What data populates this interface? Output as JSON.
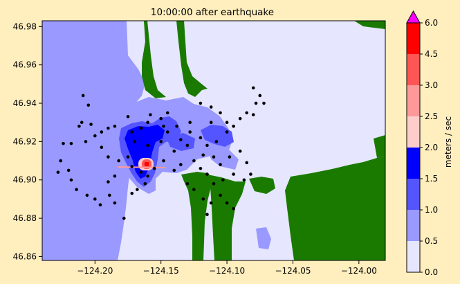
{
  "chart_data": {
    "type": "heatmap",
    "title": "10:00:00 after earthquake",
    "xlabel": "",
    "ylabel": "",
    "xlim": [
      -124.24,
      -123.98
    ],
    "ylim": [
      46.858,
      46.983
    ],
    "x_ticks": [
      -124.2,
      -124.15,
      -124.1,
      -124.05,
      -124.0
    ],
    "x_tick_labels": [
      "−124.20",
      "−124.15",
      "−124.10",
      "−124.05",
      "−124.00"
    ],
    "y_ticks": [
      46.86,
      46.88,
      46.9,
      46.92,
      46.94,
      46.96,
      46.98
    ],
    "y_tick_labels": [
      "46.86",
      "46.88",
      "46.90",
      "46.92",
      "46.94",
      "46.96",
      "46.98"
    ],
    "colorbar": {
      "label": "meters / sec",
      "levels": [
        0.0,
        0.5,
        1.0,
        1.5,
        2.0,
        2.5,
        3.0,
        4.5,
        6.0
      ],
      "level_labels": [
        "0.0",
        "0.5",
        "1.0",
        "1.5",
        "2.0",
        "2.5",
        "3.0",
        "4.5",
        "6.0"
      ],
      "colors": [
        "#e6e6ff",
        "#9999ff",
        "#5555ff",
        "#0000ff",
        "#ffcccc",
        "#ff9999",
        "#ff5555",
        "#ff0000"
      ],
      "extend_color": "#ff00ff"
    },
    "land_color": "#1a7a00",
    "gauges": [
      [
        -124.209,
        46.944
      ],
      [
        -124.205,
        46.939
      ],
      [
        -124.21,
        46.93
      ],
      [
        -124.212,
        46.928
      ],
      [
        -124.203,
        46.929
      ],
      [
        -124.207,
        46.92
      ],
      [
        -124.218,
        46.919
      ],
      [
        -124.224,
        46.919
      ],
      [
        -124.226,
        46.91
      ],
      [
        -124.22,
        46.905
      ],
      [
        -124.228,
        46.904
      ],
      [
        -124.218,
        46.9
      ],
      [
        -124.214,
        46.895
      ],
      [
        -124.206,
        46.892
      ],
      [
        -124.2,
        46.89
      ],
      [
        -124.196,
        46.887
      ],
      [
        -124.189,
        46.892
      ],
      [
        -124.185,
        46.888
      ],
      [
        -124.19,
        46.899
      ],
      [
        -124.185,
        46.902
      ],
      [
        -124.182,
        46.91
      ],
      [
        -124.19,
        46.912
      ],
      [
        -124.195,
        46.917
      ],
      [
        -124.2,
        46.923
      ],
      [
        -124.195,
        46.925
      ],
      [
        -124.19,
        46.927
      ],
      [
        -124.185,
        46.928
      ],
      [
        -124.175,
        46.933
      ],
      [
        -124.172,
        46.925
      ],
      [
        -124.165,
        46.927
      ],
      [
        -124.16,
        46.93
      ],
      [
        -124.158,
        46.934
      ],
      [
        -124.15,
        46.932
      ],
      [
        -124.148,
        46.928
      ],
      [
        -124.145,
        46.925
      ],
      [
        -124.15,
        46.92
      ],
      [
        -124.16,
        46.918
      ],
      [
        -124.17,
        46.92
      ],
      [
        -124.175,
        46.912
      ],
      [
        -124.172,
        46.907
      ],
      [
        -124.165,
        46.904
      ],
      [
        -124.16,
        46.902
      ],
      [
        -124.155,
        46.906
      ],
      [
        -124.148,
        46.91
      ],
      [
        -124.14,
        46.915
      ],
      [
        -124.135,
        46.921
      ],
      [
        -124.128,
        46.925
      ],
      [
        -124.12,
        46.922
      ],
      [
        -124.115,
        46.918
      ],
      [
        -124.11,
        46.912
      ],
      [
        -124.105,
        46.908
      ],
      [
        -124.098,
        46.912
      ],
      [
        -124.09,
        46.915
      ],
      [
        -124.085,
        46.909
      ],
      [
        -124.082,
        46.903
      ],
      [
        -124.087,
        46.9
      ],
      [
        -124.095,
        46.903
      ],
      [
        -124.103,
        46.9
      ],
      [
        -124.11,
        46.898
      ],
      [
        -124.115,
        46.903
      ],
      [
        -124.12,
        46.906
      ],
      [
        -124.125,
        46.91
      ],
      [
        -124.118,
        46.913
      ],
      [
        -124.108,
        46.92
      ],
      [
        -124.1,
        46.925
      ],
      [
        -124.095,
        46.928
      ],
      [
        -124.09,
        46.932
      ],
      [
        -124.085,
        46.935
      ],
      [
        -124.08,
        46.934
      ],
      [
        -124.078,
        46.94
      ],
      [
        -124.075,
        46.944
      ],
      [
        -124.072,
        46.94
      ],
      [
        -124.08,
        46.948
      ],
      [
        -124.1,
        46.93
      ],
      [
        -124.105,
        46.935
      ],
      [
        -124.112,
        46.938
      ],
      [
        -124.12,
        46.94
      ],
      [
        -124.112,
        46.93
      ],
      [
        -124.128,
        46.93
      ],
      [
        -124.138,
        46.928
      ],
      [
        -124.145,
        46.935
      ],
      [
        -124.14,
        46.905
      ],
      [
        -124.13,
        46.898
      ],
      [
        -124.125,
        46.895
      ],
      [
        -124.118,
        46.89
      ],
      [
        -124.112,
        46.888
      ],
      [
        -124.105,
        46.892
      ],
      [
        -124.1,
        46.888
      ],
      [
        -124.095,
        46.885
      ],
      [
        -124.115,
        46.882
      ],
      [
        -124.178,
        46.88
      ],
      [
        -124.172,
        46.893
      ],
      [
        -124.162,
        46.898
      ],
      [
        -124.168,
        46.895
      ],
      [
        -124.135,
        46.908
      ],
      [
        -124.13,
        46.918
      ]
    ]
  }
}
